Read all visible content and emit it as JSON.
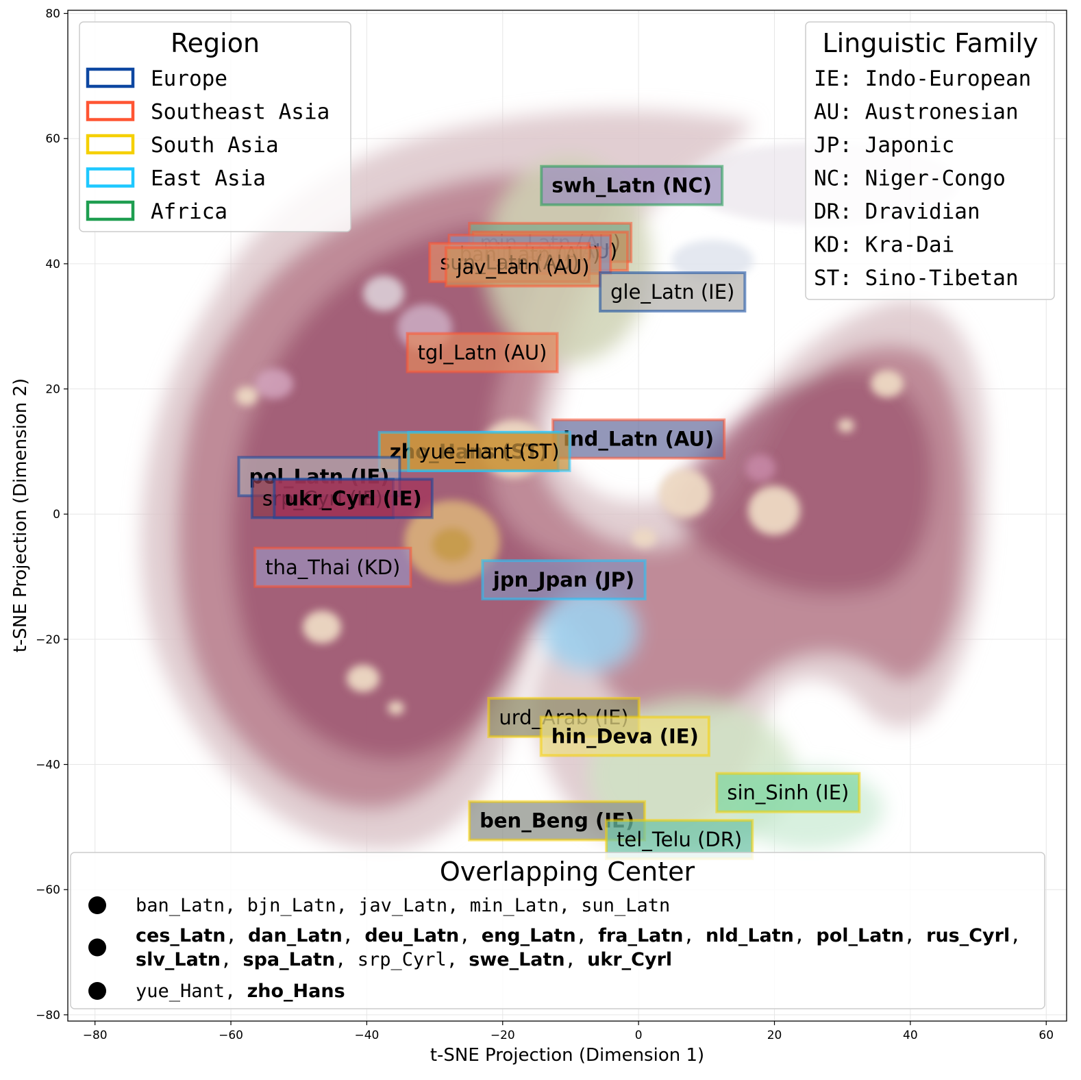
{
  "chart_data": {
    "type": "scatter",
    "xlabel": "t-SNE Projection (Dimension 1)",
    "ylabel": "t-SNE Projection (Dimension 2)",
    "xlim": [
      -84,
      63
    ],
    "ylim": [
      -81,
      80.5
    ],
    "xticks": [
      -80,
      -60,
      -40,
      -20,
      0,
      20,
      40,
      60
    ],
    "yticks": [
      -80,
      -60,
      -40,
      -20,
      0,
      20,
      40,
      60,
      80
    ],
    "grid": true,
    "region_colors": {
      "Europe": "#0d47a1",
      "Southeast Asia": "#ff5533",
      "South Asia": "#f5d000",
      "East Asia": "#1ec8ff",
      "Africa": "#1e9e50"
    },
    "points": [
      {
        "label": "swh_Latn (NC)",
        "x": -1,
        "y": 52.5,
        "region": "Africa",
        "bold": true,
        "fill": "#9b8fbc"
      },
      {
        "label": "min_Latn (AU)",
        "x": -13,
        "y": 43.4,
        "region": "Southeast Asia",
        "bold": false,
        "fill": "#7fa889"
      },
      {
        "label": "bjn_Latn (AU)",
        "x": -13,
        "y": 42,
        "region": "Southeast Asia",
        "bold": false,
        "fill": "#c9915f"
      },
      {
        "label": "ban_Latn (AU)",
        "x": -16,
        "y": 41.5,
        "region": "Southeast Asia",
        "bold": false,
        "fill": "#8a8fb8"
      },
      {
        "label": "sun_Latn (AU)",
        "x": -19,
        "y": 40.2,
        "region": "Southeast Asia",
        "bold": false,
        "fill": "#e08a6a"
      },
      {
        "label": "jav_Latn (AU)",
        "x": -17,
        "y": 39.5,
        "region": "Southeast Asia",
        "bold": false,
        "fill": "#c9915f"
      },
      {
        "label": "gle_Latn (IE)",
        "x": 5,
        "y": 35.5,
        "region": "Europe",
        "bold": false,
        "fill": "#b4b1ad"
      },
      {
        "label": "tgl_Latn (AU)",
        "x": -23,
        "y": 25.8,
        "region": "Southeast Asia",
        "bold": false,
        "fill": "#e0875e"
      },
      {
        "label": "ind_Latn (AU)",
        "x": 0,
        "y": 12,
        "region": "Southeast Asia",
        "bold": true,
        "fill": "#6a6f9e"
      },
      {
        "label": "zho_Hans (ST)",
        "x": -25,
        "y": 10,
        "region": "East Asia",
        "bold": true,
        "fill": "#d29a38"
      },
      {
        "label": "yue_Hant (ST)",
        "x": -22,
        "y": 10,
        "region": "East Asia",
        "bold": false,
        "fill": "#c99440"
      },
      {
        "label": "pol_Latn (IE)",
        "x": -47,
        "y": 6,
        "region": "Europe",
        "bold": true,
        "fill": "#b3a7ae"
      },
      {
        "label": "srp_Cyrl (IE)",
        "x": -46.5,
        "y": 2.5,
        "region": "Europe",
        "bold": false,
        "fill": "#8d3a4d"
      },
      {
        "label": "ukr_Cyrl (IE)",
        "x": -42,
        "y": 2.5,
        "region": "Europe",
        "bold": true,
        "fill": "#a3325a"
      },
      {
        "label": "tha_Thai (KD)",
        "x": -45,
        "y": -8.5,
        "region": "Southeast Asia",
        "bold": false,
        "fill": "#9b8fbc"
      },
      {
        "label": "jpn_Jpan (JP)",
        "x": -11,
        "y": -10.5,
        "region": "East Asia",
        "bold": true,
        "fill": "#8a8fb8"
      },
      {
        "label": "urd_Arab (IE)",
        "x": -11,
        "y": -32.5,
        "region": "South Asia",
        "bold": false,
        "fill": "#8f8a66"
      },
      {
        "label": "hin_Deva (IE)",
        "x": -2,
        "y": -35.5,
        "region": "South Asia",
        "bold": true,
        "fill": "#ecde86"
      },
      {
        "label": "sin_Sinh (IE)",
        "x": 22,
        "y": -44.5,
        "region": "South Asia",
        "bold": false,
        "fill": "#7fd6a0"
      },
      {
        "label": "ben_Beng (IE)",
        "x": -12,
        "y": -49,
        "region": "South Asia",
        "bold": true,
        "fill": "#8a8f86"
      },
      {
        "label": "tel_Telu (DR)",
        "x": 6,
        "y": -52,
        "region": "South Asia",
        "bold": false,
        "fill": "#6ec2a6"
      }
    ]
  },
  "legend_region": {
    "title": "Region",
    "items": [
      {
        "label": "Europe",
        "color": "#0d47a1"
      },
      {
        "label": "Southeast Asia",
        "color": "#ff5533"
      },
      {
        "label": "South Asia",
        "color": "#f5d000"
      },
      {
        "label": "East Asia",
        "color": "#1ec8ff"
      },
      {
        "label": "Africa",
        "color": "#1e9e50"
      }
    ]
  },
  "legend_family": {
    "title": "Linguistic Family",
    "items": [
      "IE: Indo-European",
      "AU: Austronesian",
      "JP: Japonic",
      "NC: Niger-Congo",
      "DR: Dravidian",
      "KD: Kra-Dai",
      "ST: Sino-Tibetan"
    ]
  },
  "legend_overlap": {
    "title": "Overlapping Center",
    "rows": [
      [
        [
          {
            "t": "ban_Latn",
            "b": false
          },
          {
            "t": "bjn_Latn",
            "b": false
          },
          {
            "t": "jav_Latn",
            "b": false
          },
          {
            "t": "min_Latn",
            "b": false
          },
          {
            "t": "sun_Latn",
            "b": false
          }
        ]
      ],
      [
        [
          {
            "t": "ces_Latn",
            "b": true
          },
          {
            "t": "dan_Latn",
            "b": true
          },
          {
            "t": "deu_Latn",
            "b": true
          },
          {
            "t": "eng_Latn",
            "b": true
          },
          {
            "t": "fra_Latn",
            "b": true
          },
          {
            "t": "nld_Latn",
            "b": true
          },
          {
            "t": "pol_Latn",
            "b": true
          },
          {
            "t": "rus_Cyrl",
            "b": true
          }
        ],
        [
          {
            "t": "slv_Latn",
            "b": true
          },
          {
            "t": "spa_Latn",
            "b": true
          },
          {
            "t": "srp_Cyrl",
            "b": false
          },
          {
            "t": "swe_Latn",
            "b": true
          },
          {
            "t": "ukr_Cyrl",
            "b": true
          }
        ]
      ],
      [
        [
          {
            "t": "yue_Hant",
            "b": false
          },
          {
            "t": "zho_Hans",
            "b": true
          }
        ]
      ]
    ]
  }
}
